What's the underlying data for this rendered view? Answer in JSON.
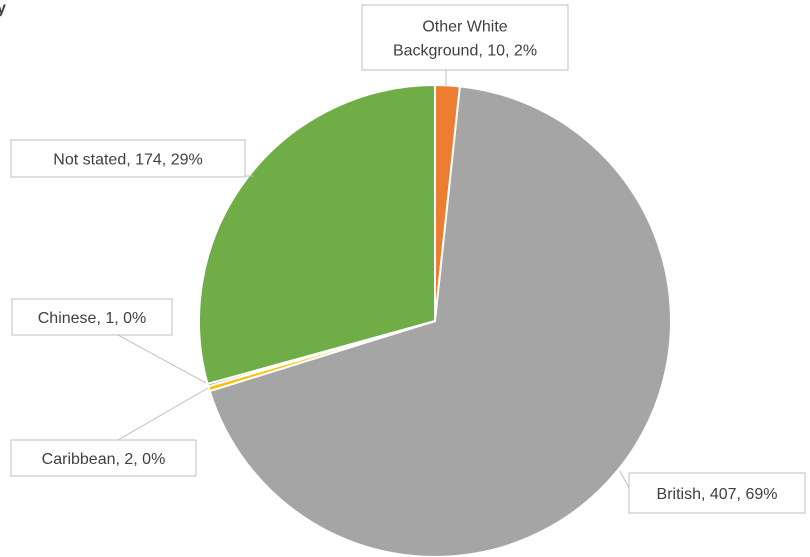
{
  "chart_data": {
    "type": "pie",
    "title": "y",
    "slices": [
      {
        "label": "Other White Background",
        "value": 10,
        "percent": "2%",
        "color": "#ED7D31"
      },
      {
        "label": "British",
        "value": 407,
        "percent": "69%",
        "color": "#A5A5A5"
      },
      {
        "label": "Caribbean",
        "value": 2,
        "percent": "0%",
        "color": "#FFC000"
      },
      {
        "label": "Chinese",
        "value": 1,
        "percent": "0%",
        "color": "#4472C4"
      },
      {
        "label": "Not stated",
        "value": 174,
        "percent": "29%",
        "color": "#70AD47"
      }
    ],
    "data_labels": [
      {
        "lines": [
          "Other White",
          "Background, 10, 2%"
        ]
      },
      {
        "lines": [
          "British, 407, 69%"
        ]
      },
      {
        "lines": [
          "Caribbean, 2, 0%"
        ]
      },
      {
        "lines": [
          "Chinese, 1, 0%"
        ]
      },
      {
        "lines": [
          "Not stated, 174, 29%"
        ]
      }
    ]
  }
}
